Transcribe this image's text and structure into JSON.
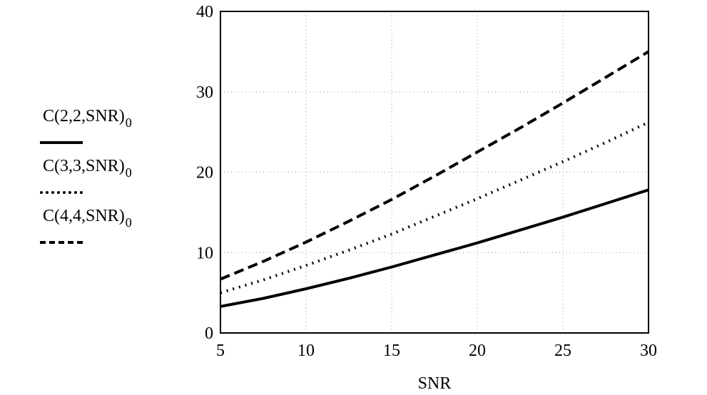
{
  "chart_data": {
    "type": "line",
    "xlabel": "SNR",
    "ylabel": "",
    "xlim": [
      5,
      30
    ],
    "ylim": [
      0,
      40
    ],
    "x_ticks": [
      5,
      10,
      15,
      20,
      25,
      30
    ],
    "y_ticks": [
      0,
      10,
      20,
      30,
      40
    ],
    "grid": "dotted",
    "legend_position": "left",
    "x": [
      5,
      7.5,
      10,
      12.5,
      15,
      17.5,
      20,
      22.5,
      25,
      27.5,
      30
    ],
    "series": [
      {
        "name": "C(2,2,SNR)",
        "subscript": "0",
        "style": "solid",
        "values": [
          3.3,
          4.3,
          5.5,
          6.8,
          8.2,
          9.7,
          11.2,
          12.8,
          14.4,
          16.1,
          17.8
        ]
      },
      {
        "name": "C(3,3,SNR)",
        "subscript": "0",
        "style": "dotted",
        "values": [
          5.0,
          6.6,
          8.4,
          10.3,
          12.3,
          14.5,
          16.7,
          19.0,
          21.3,
          23.7,
          26.2
        ]
      },
      {
        "name": "C(4,4,SNR)",
        "subscript": "0",
        "style": "dashed",
        "values": [
          6.7,
          8.9,
          11.3,
          13.9,
          16.6,
          19.5,
          22.5,
          25.5,
          28.6,
          31.8,
          35.0
        ]
      }
    ]
  }
}
